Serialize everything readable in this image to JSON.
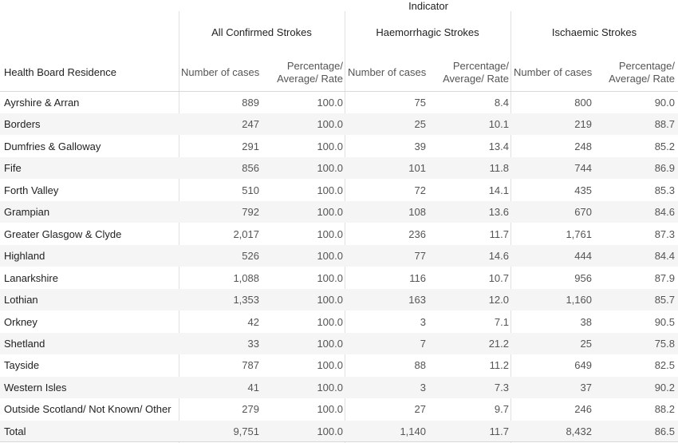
{
  "table": {
    "indicator_label": "Indicator",
    "row_header": "Health Board Residence",
    "groups": [
      "All Confirmed Strokes",
      "Haemorrhagic Strokes",
      "Ischaemic Strokes"
    ],
    "col_num": "Number of cases",
    "col_pct_line1": "Percentage/",
    "col_pct_line2": "Average/ Rate",
    "rows": [
      {
        "name": "Ayrshire & Arran",
        "values": [
          "889",
          "100.0",
          "75",
          "8.4",
          "800",
          "90.0"
        ]
      },
      {
        "name": "Borders",
        "values": [
          "247",
          "100.0",
          "25",
          "10.1",
          "219",
          "88.7"
        ]
      },
      {
        "name": "Dumfries & Galloway",
        "values": [
          "291",
          "100.0",
          "39",
          "13.4",
          "248",
          "85.2"
        ]
      },
      {
        "name": "Fife",
        "values": [
          "856",
          "100.0",
          "101",
          "11.8",
          "744",
          "86.9"
        ]
      },
      {
        "name": "Forth Valley",
        "values": [
          "510",
          "100.0",
          "72",
          "14.1",
          "435",
          "85.3"
        ]
      },
      {
        "name": "Grampian",
        "values": [
          "792",
          "100.0",
          "108",
          "13.6",
          "670",
          "84.6"
        ]
      },
      {
        "name": "Greater Glasgow & Clyde",
        "values": [
          "2,017",
          "100.0",
          "236",
          "11.7",
          "1,761",
          "87.3"
        ]
      },
      {
        "name": "Highland",
        "values": [
          "526",
          "100.0",
          "77",
          "14.6",
          "444",
          "84.4"
        ]
      },
      {
        "name": "Lanarkshire",
        "values": [
          "1,088",
          "100.0",
          "116",
          "10.7",
          "956",
          "87.9"
        ]
      },
      {
        "name": "Lothian",
        "values": [
          "1,353",
          "100.0",
          "163",
          "12.0",
          "1,160",
          "85.7"
        ]
      },
      {
        "name": "Orkney",
        "values": [
          "42",
          "100.0",
          "3",
          "7.1",
          "38",
          "90.5"
        ]
      },
      {
        "name": "Shetland",
        "values": [
          "33",
          "100.0",
          "7",
          "21.2",
          "25",
          "75.8"
        ]
      },
      {
        "name": "Tayside",
        "values": [
          "787",
          "100.0",
          "88",
          "11.2",
          "649",
          "82.5"
        ]
      },
      {
        "name": "Western Isles",
        "values": [
          "41",
          "100.0",
          "3",
          "7.3",
          "37",
          "90.2"
        ]
      },
      {
        "name": "Outside Scotland/ Not Known/ Other",
        "values": [
          "279",
          "100.0",
          "27",
          "9.7",
          "246",
          "88.2"
        ]
      },
      {
        "name": "Total",
        "values": [
          "9,751",
          "100.0",
          "1,140",
          "11.7",
          "8,432",
          "86.5"
        ]
      }
    ]
  }
}
